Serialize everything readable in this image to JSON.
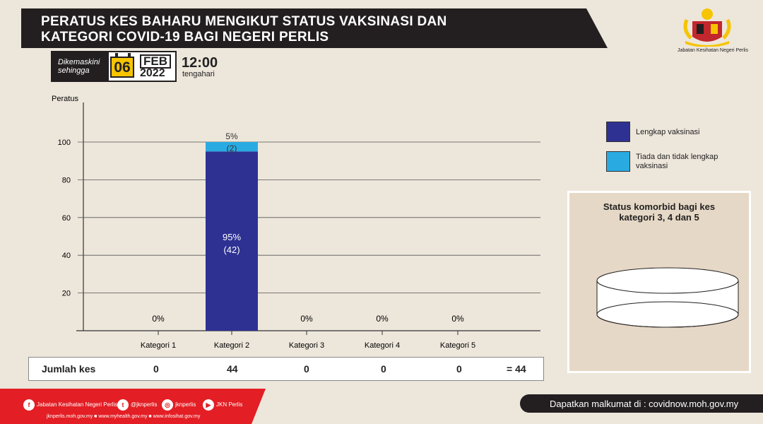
{
  "header": {
    "title_line1": "PERATUS KES BAHARU MENGIKUT STATUS VAKSINASI  DAN",
    "title_line2": "KATEGORI COVID-19 BAGI NEGERI PERLIS",
    "updated_label_1": "Dikemaskini",
    "updated_label_2": "sehingga",
    "day": "06",
    "month": "FEB",
    "year": "2022",
    "time": "12:00",
    "time_label": "tengahari",
    "logo_caption": "Jabatan Kesihatan Negeri Perlis"
  },
  "chart_data": {
    "type": "bar",
    "stacked": true,
    "ylabel": "Peratus",
    "yticks": [
      20,
      40,
      60,
      80,
      100
    ],
    "ylim": [
      0,
      120
    ],
    "categories": [
      "Kategori 1",
      "Kategori 2",
      "Kategori 3",
      "Kategori 4",
      "Kategori 5"
    ],
    "series": [
      {
        "name": "Lengkap vaksinasi",
        "color": "#2e3192",
        "values": [
          0,
          95,
          0,
          0,
          0
        ],
        "counts": [
          0,
          42,
          0,
          0,
          0
        ]
      },
      {
        "name": "Tiada dan tidak lengkap vaksinasi",
        "color": "#29abe2",
        "values": [
          0,
          5,
          0,
          0,
          0
        ],
        "counts": [
          0,
          2,
          0,
          0,
          0
        ]
      }
    ],
    "zero_labels": [
      "0%",
      "",
      "0%",
      "0%",
      "0%"
    ],
    "bar_labels": {
      "Kategori 2": {
        "Lengkap vaksinasi": [
          "95%",
          "(42)"
        ],
        "Tiada dan tidak lengkap vaksinasi": [
          "5%",
          "(2)"
        ]
      }
    },
    "grid": true,
    "legend_position": "right"
  },
  "legend": {
    "item1": "Lengkap vaksinasi",
    "item2_line1": "Tiada dan tidak lengkap",
    "item2_line2": "vaksinasi",
    "color1": "#2e3192",
    "color2": "#29abe2"
  },
  "comorbid": {
    "title_line1": "Status komorbid bagi kes",
    "title_line2": "kategori 3, 4 dan 5"
  },
  "totals": {
    "label": "Jumlah kes",
    "values": [
      "0",
      "44",
      "0",
      "0",
      "0"
    ],
    "sum": "= 44"
  },
  "footer": {
    "facebook": "Jabatan Kesihatan Negeri Perlis",
    "twitter": "@jknperlis",
    "instagram": "jknperlis",
    "youtube": "JKN Perlis",
    "websites": "jknperlis.moh.gov.my  ■  www.myhealth.gov.my  ■  www.infosihat.gov.my",
    "info": "Dapatkan malkumat di : covidnow.moh.gov.my"
  }
}
